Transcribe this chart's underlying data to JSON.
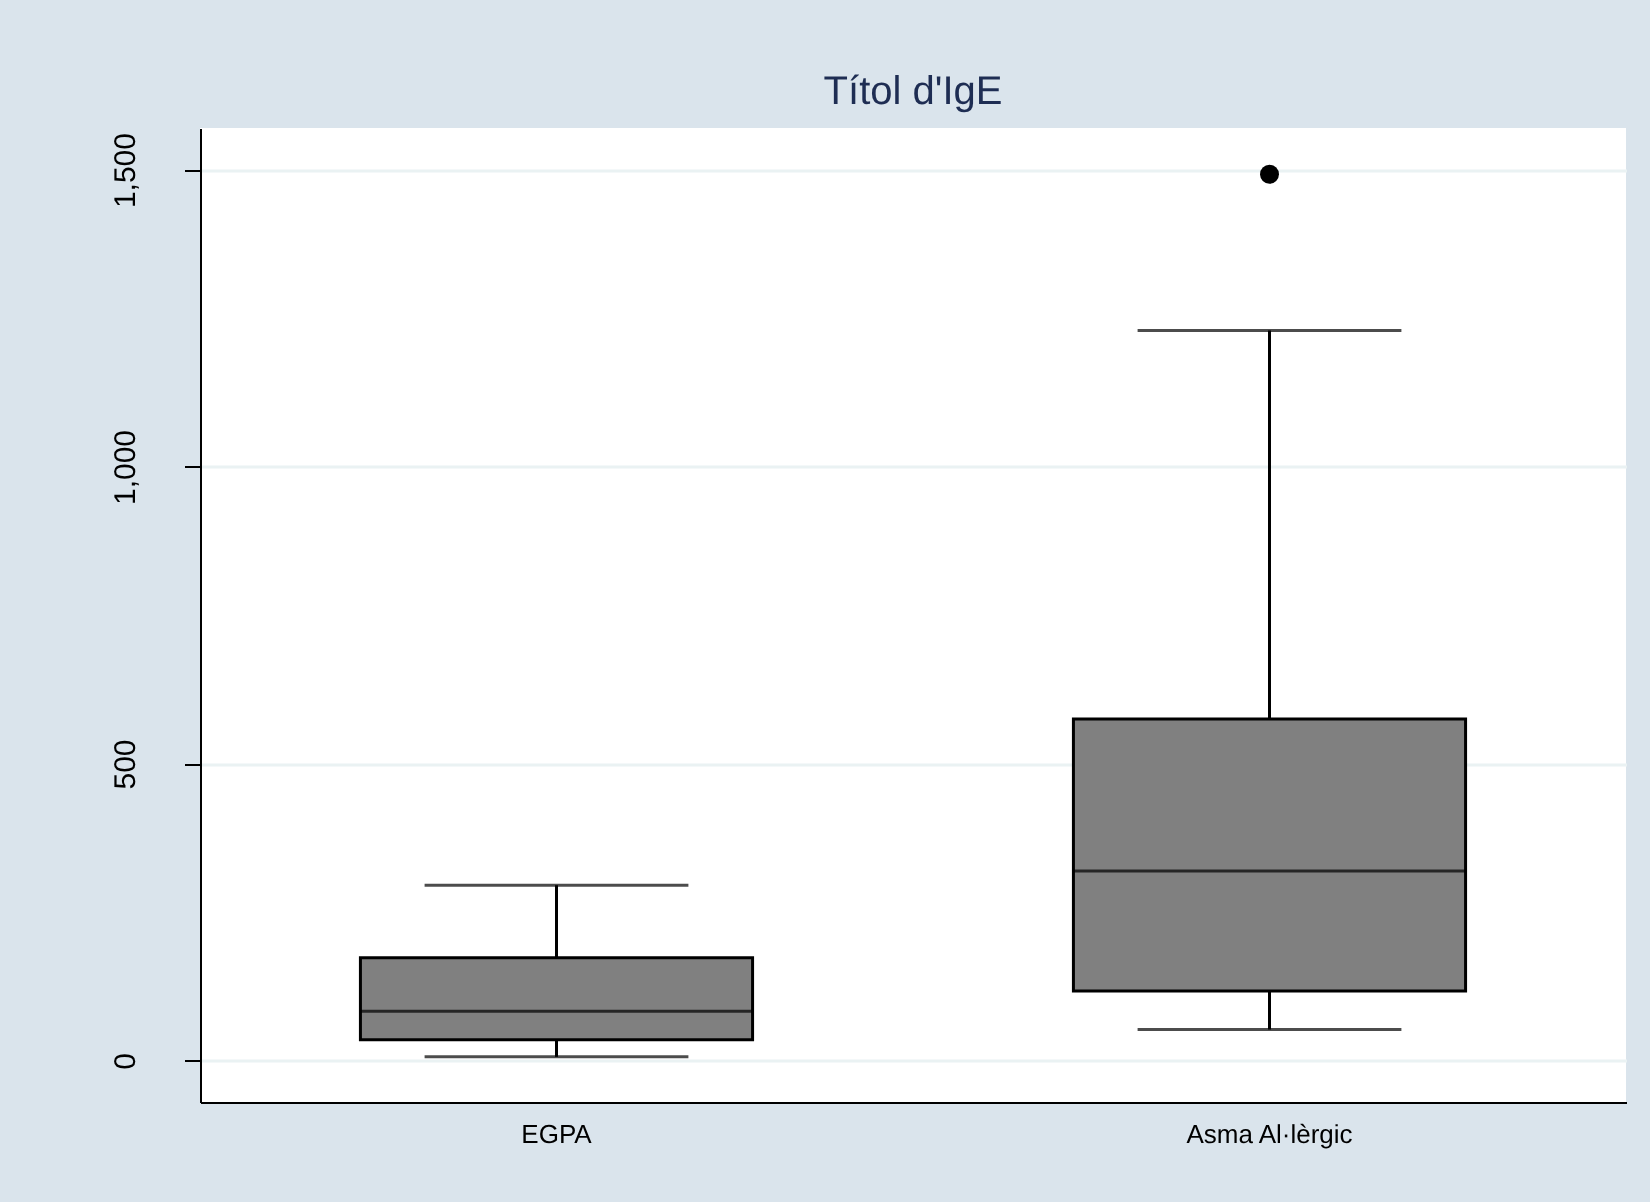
{
  "chart_data": {
    "type": "box",
    "title": "Títol d'IgE",
    "categories": [
      "EGPA",
      "Asma Al·lèrgic"
    ],
    "boxes": [
      {
        "low": 6,
        "q1": 35,
        "median": 83,
        "q3": 173,
        "high": 295
      },
      {
        "low": 52,
        "q1": 117,
        "median": 319,
        "q3": 575,
        "high": 1229,
        "outliers": [
          1492
        ]
      }
    ],
    "colors": [
      "#808080",
      "#808080"
    ],
    "ylim": [
      -70,
      1570
    ],
    "yticks": [
      0,
      500,
      {
        "value": 1000,
        "label": "1,000"
      },
      {
        "value": 1500,
        "label": "1,500"
      }
    ],
    "grid": "y"
  }
}
